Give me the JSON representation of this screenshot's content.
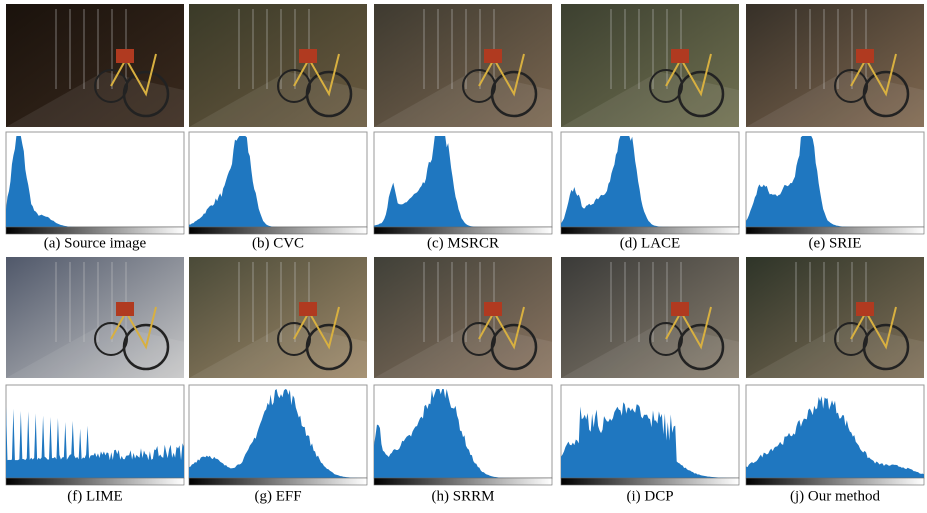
{
  "panels": [
    {
      "caption": "(a) Source image"
    },
    {
      "caption": "(b) CVC"
    },
    {
      "caption": "(c) MSRCR"
    },
    {
      "caption": "(d) LACE"
    },
    {
      "caption": "(e) SRIE"
    },
    {
      "caption": "(f) LIME"
    },
    {
      "caption": "(g) EFF"
    },
    {
      "caption": "(h) SRRM"
    },
    {
      "caption": "(i) DCP"
    },
    {
      "caption": "(j) Our method"
    }
  ]
}
